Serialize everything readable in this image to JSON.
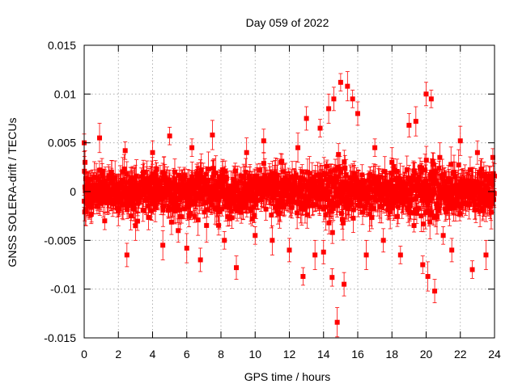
{
  "chart_data": {
    "type": "scatter",
    "title": "Day 059 of 2022",
    "xlabel": "GPS time / hours",
    "ylabel": "GNSS SOLERA-drift / TECUs",
    "xlim": [
      0,
      24
    ],
    "ylim": [
      -0.015,
      0.015
    ],
    "x_ticks": [
      "0",
      "2",
      "4",
      "6",
      "8",
      "10",
      "12",
      "14",
      "16",
      "18",
      "20",
      "22",
      "24"
    ],
    "y_ticks": [
      "0.015",
      "0.01",
      "0.005",
      "0",
      "-0.005",
      "-0.01",
      "-0.015"
    ],
    "grid": true,
    "marker_color": "#ff0000",
    "error_bars": true,
    "series": [
      {
        "x": [
          0.0,
          0.05,
          0.1,
          0.25,
          0.5,
          0.9,
          1.2,
          1.6,
          2.0,
          2.4,
          2.5,
          3.0,
          3.5,
          4.0,
          4.6,
          5.0,
          5.5,
          6.0,
          6.3,
          6.8,
          7.5,
          8.2,
          8.9,
          9.5,
          10.0,
          10.5,
          11.0,
          11.5,
          12.0,
          12.5,
          12.8,
          13.0,
          13.5,
          13.8,
          14.0,
          14.3,
          14.5,
          14.6,
          14.8,
          15.0,
          15.2,
          15.4,
          15.7,
          16.0,
          16.5,
          17.0,
          17.5,
          18.0,
          18.5,
          19.0,
          19.4,
          19.8,
          20.0,
          20.1,
          20.3,
          20.5,
          20.8,
          21.0,
          21.5,
          22.0,
          22.7,
          23.0,
          23.5,
          23.9
        ],
        "y": [
          0.005,
          0.003,
          -0.002,
          0.001,
          0.0005,
          0.0055,
          -0.003,
          0.002,
          -0.002,
          0.0042,
          -0.0065,
          -0.0035,
          0.002,
          0.004,
          -0.0055,
          0.0057,
          -0.004,
          -0.0058,
          0.0045,
          -0.007,
          0.0058,
          -0.005,
          -0.0078,
          0.004,
          -0.0045,
          0.0052,
          -0.005,
          0.003,
          -0.006,
          0.0045,
          -0.0087,
          0.0075,
          -0.0065,
          0.0065,
          -0.0062,
          0.0085,
          -0.0088,
          0.0095,
          -0.0134,
          0.0112,
          -0.0095,
          0.0108,
          0.0095,
          0.008,
          -0.0065,
          0.0045,
          -0.005,
          0.003,
          -0.0065,
          0.0068,
          0.0072,
          -0.0075,
          0.01,
          -0.0087,
          0.0095,
          -0.0102,
          0.0035,
          -0.0045,
          -0.006,
          0.0052,
          -0.008,
          0.004,
          -0.0065,
          0.0035
        ]
      }
    ]
  }
}
